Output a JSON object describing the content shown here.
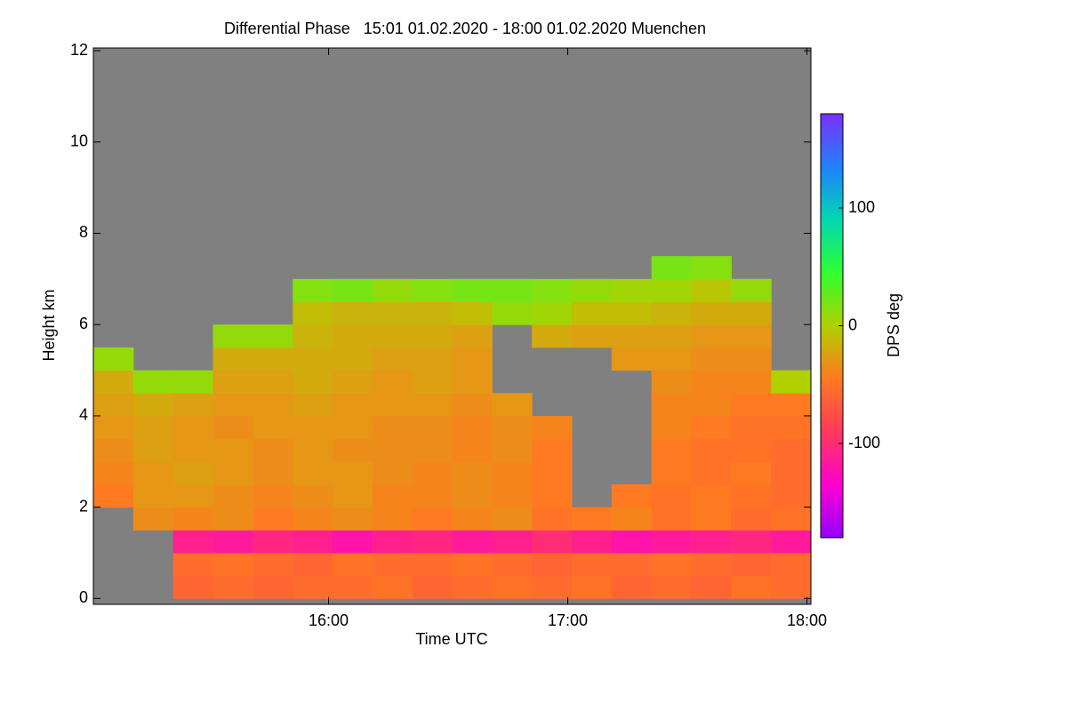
{
  "chart_data": {
    "type": "heatmap",
    "title": "Differential Phase   15:01 01.02.2020 - 18:00 01.02.2020 Muenchen",
    "x_label": "Time UTC",
    "y_label": "Height km",
    "colorbar_label": "DPS deg",
    "xlim": [
      1,
      181
    ],
    "xticks": [
      {
        "value": 60,
        "label": "16:00"
      },
      {
        "value": 120,
        "label": "17:00"
      },
      {
        "value": 180,
        "label": "18:00"
      }
    ],
    "ylim": [
      -0.13,
      12.06
    ],
    "yticks": [
      0,
      2,
      4,
      6,
      8,
      10,
      12
    ],
    "clim": [
      -180,
      180
    ],
    "cticks": [
      -100,
      0,
      100
    ],
    "background": "#808080",
    "colormap": [
      "#9400ff",
      "#ff00d0",
      "#ff3a5a",
      "#ff7a20",
      "#b0d000",
      "#30ff30",
      "#00d8b0",
      "#2080ff",
      "#7a30ff"
    ],
    "z": [
      [
        null,
        null,
        -60,
        -55,
        -60,
        -55,
        -55,
        -50,
        -60,
        -55,
        -50,
        -55,
        -50,
        -60,
        -55,
        -60,
        -50,
        -55
      ],
      [
        null,
        null,
        -55,
        -50,
        -55,
        -60,
        -50,
        -55,
        -55,
        -50,
        -55,
        -60,
        -55,
        -55,
        -50,
        -55,
        -60,
        -55
      ],
      [
        null,
        null,
        -110,
        -115,
        -105,
        -110,
        -120,
        -110,
        -105,
        -115,
        -110,
        -100,
        -110,
        -120,
        -115,
        -110,
        -105,
        -115
      ],
      [
        null,
        -35,
        -40,
        -35,
        -45,
        -40,
        -35,
        -40,
        -45,
        -40,
        -35,
        -50,
        -45,
        -40,
        -50,
        -45,
        -55,
        -50
      ],
      [
        -45,
        -30,
        -30,
        -35,
        -40,
        -35,
        -30,
        -40,
        -40,
        -35,
        -40,
        -45,
        null,
        -45,
        -50,
        -45,
        -50,
        -55
      ],
      [
        -40,
        -30,
        -25,
        -30,
        -35,
        -30,
        -30,
        -35,
        -40,
        -35,
        -40,
        -45,
        null,
        null,
        -45,
        -50,
        -45,
        -55
      ],
      [
        -35,
        -25,
        -30,
        -30,
        -35,
        -30,
        -35,
        -35,
        -35,
        -40,
        -35,
        -45,
        null,
        null,
        -45,
        -50,
        -50,
        -55
      ],
      [
        -30,
        -25,
        -30,
        -35,
        -30,
        -30,
        -30,
        -35,
        -35,
        -40,
        -35,
        -40,
        null,
        null,
        -40,
        -45,
        -50,
        -50
      ],
      [
        -25,
        -20,
        -25,
        -30,
        -30,
        -25,
        -30,
        -30,
        -30,
        -35,
        -30,
        null,
        null,
        null,
        -40,
        -40,
        -45,
        -45
      ],
      [
        -20,
        10,
        10,
        -25,
        -25,
        -20,
        -25,
        -30,
        -25,
        -30,
        null,
        null,
        null,
        null,
        -35,
        -40,
        -40,
        0
      ],
      [
        10,
        null,
        null,
        -20,
        -20,
        -20,
        -20,
        -25,
        -25,
        -30,
        null,
        null,
        null,
        -30,
        -30,
        -35,
        -35,
        null
      ],
      [
        null,
        null,
        null,
        10,
        10,
        -15,
        -20,
        -20,
        -20,
        -25,
        null,
        -20,
        -25,
        -25,
        -25,
        -30,
        -30,
        null
      ],
      [
        null,
        null,
        null,
        null,
        null,
        -10,
        -15,
        -15,
        -15,
        -10,
        10,
        5,
        -10,
        -10,
        -15,
        -20,
        -20,
        null
      ],
      [
        null,
        null,
        null,
        null,
        null,
        15,
        20,
        10,
        15,
        20,
        20,
        15,
        10,
        5,
        5,
        -5,
        10,
        null
      ],
      [
        null,
        null,
        null,
        null,
        null,
        null,
        null,
        null,
        null,
        null,
        null,
        null,
        null,
        null,
        20,
        15,
        null,
        null
      ],
      [
        null,
        null,
        null,
        null,
        null,
        null,
        null,
        null,
        null,
        null,
        null,
        null,
        null,
        null,
        null,
        null,
        null,
        null
      ],
      [
        null,
        null,
        null,
        null,
        null,
        null,
        null,
        null,
        null,
        null,
        null,
        null,
        null,
        null,
        null,
        null,
        null,
        null
      ],
      [
        null,
        null,
        null,
        null,
        null,
        null,
        null,
        null,
        null,
        null,
        null,
        null,
        null,
        null,
        null,
        null,
        null,
        null
      ],
      [
        null,
        null,
        null,
        null,
        null,
        null,
        null,
        null,
        null,
        null,
        null,
        null,
        null,
        null,
        null,
        null,
        null,
        null
      ],
      [
        null,
        null,
        null,
        null,
        null,
        null,
        null,
        null,
        null,
        null,
        null,
        null,
        null,
        null,
        null,
        null,
        null,
        null
      ],
      [
        null,
        null,
        null,
        null,
        null,
        null,
        null,
        null,
        null,
        null,
        null,
        null,
        null,
        null,
        null,
        null,
        null,
        null
      ],
      [
        null,
        null,
        null,
        null,
        null,
        null,
        null,
        null,
        null,
        null,
        null,
        null,
        null,
        null,
        null,
        null,
        null,
        null
      ],
      [
        null,
        null,
        null,
        null,
        null,
        null,
        null,
        null,
        null,
        null,
        null,
        null,
        null,
        null,
        null,
        null,
        null,
        null
      ],
      [
        null,
        null,
        null,
        null,
        null,
        null,
        null,
        null,
        null,
        null,
        null,
        null,
        null,
        null,
        null,
        null,
        null,
        null
      ]
    ]
  }
}
